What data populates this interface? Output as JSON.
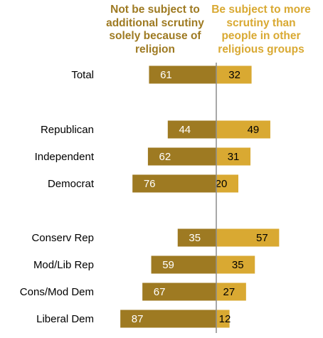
{
  "headers": {
    "left": [
      "Not be subject to",
      "additional scrutiny",
      "solely because of",
      "religion"
    ],
    "right": [
      "Be subject to more",
      "scrutiny than",
      "people in other",
      "religious groups"
    ]
  },
  "colors": {
    "left_bar": "#9E7A22",
    "right_bar": "#D9A932",
    "left_header": "#9E7A22",
    "right_header": "#D9A932",
    "divider": "#8C8C8C",
    "left_value_text": "#FFFFFF",
    "right_value_text": "#000000"
  },
  "chart_data": {
    "type": "bar",
    "orientation": "horizontal-diverging",
    "categories": [
      "Total",
      "Republican",
      "Independent",
      "Democrat",
      "Conserv Rep",
      "Mod/Lib Rep",
      "Cons/Mod Dem",
      "Liberal Dem"
    ],
    "groups": [
      [
        0
      ],
      [
        1,
        2,
        3
      ],
      [
        4,
        5,
        6,
        7
      ]
    ],
    "series": [
      {
        "name": "Not be subject to additional scrutiny solely because of religion",
        "values": [
          61,
          44,
          62,
          76,
          35,
          59,
          67,
          87
        ]
      },
      {
        "name": "Be subject to more scrutiny than people in other religious groups",
        "values": [
          32,
          49,
          31,
          20,
          57,
          35,
          27,
          12
        ]
      }
    ]
  }
}
